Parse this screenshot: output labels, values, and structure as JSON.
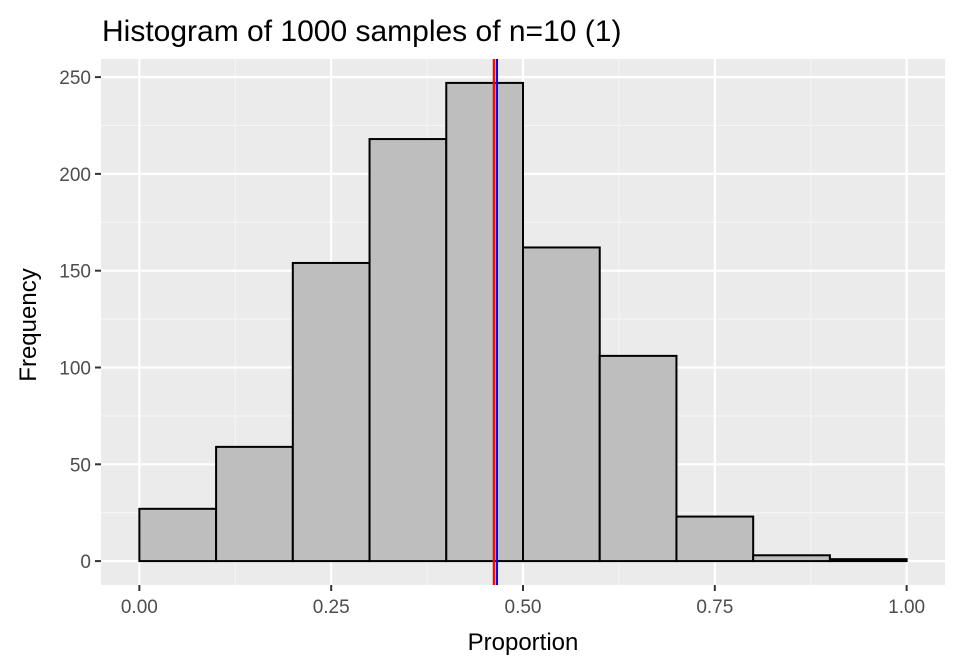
{
  "chart_data": {
    "type": "bar",
    "title": "Histogram of 1000 samples of n=10 (1)",
    "xlabel": "Proportion",
    "ylabel": "Frequency",
    "bins": [
      {
        "x0": 0.0,
        "x1": 0.1,
        "count": 27
      },
      {
        "x0": 0.1,
        "x1": 0.2,
        "count": 59
      },
      {
        "x0": 0.2,
        "x1": 0.3,
        "count": 154
      },
      {
        "x0": 0.3,
        "x1": 0.4,
        "count": 218
      },
      {
        "x0": 0.4,
        "x1": 0.5,
        "count": 247
      },
      {
        "x0": 0.5,
        "x1": 0.6,
        "count": 162
      },
      {
        "x0": 0.6,
        "x1": 0.7,
        "count": 106
      },
      {
        "x0": 0.7,
        "x1": 0.8,
        "count": 23
      },
      {
        "x0": 0.8,
        "x1": 0.9,
        "count": 3
      },
      {
        "x0": 0.9,
        "x1": 1.0,
        "count": 1
      }
    ],
    "vlines": [
      {
        "x": 0.462,
        "color": "#ff0000"
      },
      {
        "x": 0.466,
        "color": "#0000ff"
      }
    ],
    "xlim": [
      -0.05,
      1.05
    ],
    "ylim": [
      -12.35,
      259.35
    ],
    "xticks": [
      0.0,
      0.25,
      0.5,
      0.75,
      1.0
    ],
    "xtick_labels": [
      "0.00",
      "0.25",
      "0.50",
      "0.75",
      "1.00"
    ],
    "yticks": [
      0,
      50,
      100,
      150,
      200,
      250
    ],
    "ytick_labels": [
      "0",
      "50",
      "100",
      "150",
      "200",
      "250"
    ],
    "grid": true,
    "colors": {
      "panel_background": "#ebebeb",
      "grid_major": "#ffffff",
      "grid_minor": "#f5f5f5",
      "bar_fill": "#bebebe",
      "bar_outline": "#000000"
    }
  }
}
